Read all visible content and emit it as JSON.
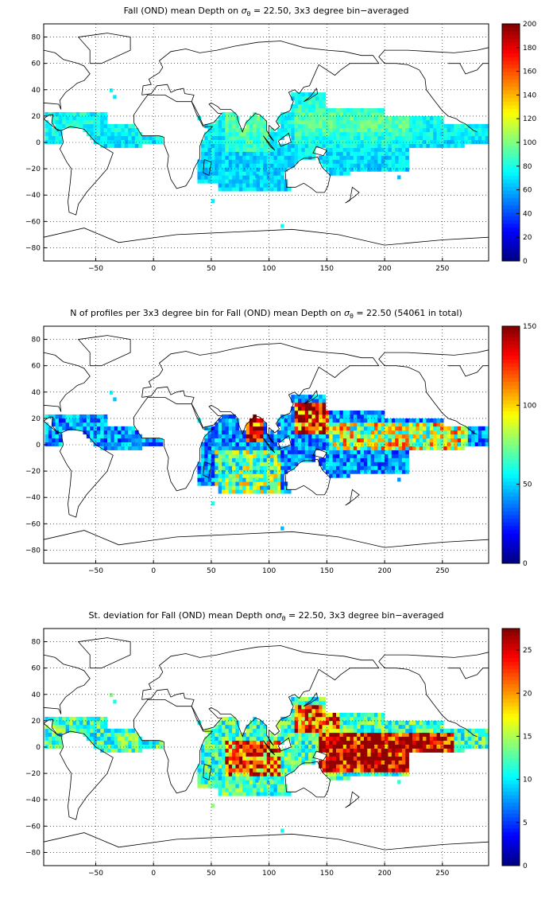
{
  "chart_data": [
    {
      "type": "heatmap",
      "title_pre": "Fall (OND) mean Depth on ",
      "title_sigma": "σ",
      "title_sub": "θ",
      "title_post": " = 22.50, 3x3 degree bin−averaged",
      "xticks": [
        "−50",
        "0",
        "50",
        "100",
        "150",
        "200",
        "250"
      ],
      "yticks": [
        "80",
        "60",
        "40",
        "20",
        "0",
        "−20",
        "−40",
        "−60",
        "−80"
      ],
      "xlim": [
        -95,
        290
      ],
      "ylim": [
        -90,
        90
      ],
      "colorbar_ticks": [
        "200",
        "180",
        "160",
        "140",
        "120",
        "100",
        "80",
        "60",
        "40",
        "20",
        "0"
      ],
      "clim": [
        0,
        200
      ],
      "grid": true,
      "colormap": "jet"
    },
    {
      "type": "heatmap",
      "title_pre": "N of profiles per 3x3 degree bin for Fall (OND) mean Depth on ",
      "title_sigma": "σ",
      "title_sub": "θ",
      "title_post": " = 22.50 (54061 in total)",
      "xticks": [
        "−50",
        "0",
        "50",
        "100",
        "150",
        "200",
        "250"
      ],
      "yticks": [
        "80",
        "60",
        "40",
        "20",
        "0",
        "−20",
        "−40",
        "−60",
        "−80"
      ],
      "xlim": [
        -95,
        290
      ],
      "ylim": [
        -90,
        90
      ],
      "colorbar_ticks": [
        "150",
        "100",
        "50",
        "0"
      ],
      "clim": [
        0,
        150
      ],
      "grid": true,
      "colormap": "jet"
    },
    {
      "type": "heatmap",
      "title_pre": "St. deviation for Fall (OND) mean Depth on",
      "title_sigma": "σ",
      "title_sub": "θ",
      "title_post": " = 22.50, 3x3 degree bin−averaged",
      "xticks": [
        "−50",
        "0",
        "50",
        "100",
        "150",
        "200",
        "250"
      ],
      "yticks": [
        "80",
        "60",
        "40",
        "20",
        "0",
        "−20",
        "−40",
        "−60",
        "−80"
      ],
      "xlim": [
        -95,
        290
      ],
      "ylim": [
        -90,
        90
      ],
      "colorbar_ticks": [
        "25",
        "20",
        "15",
        "10",
        "5",
        "0"
      ],
      "clim": [
        0,
        27.5
      ],
      "grid": true,
      "colormap": "jet"
    }
  ]
}
